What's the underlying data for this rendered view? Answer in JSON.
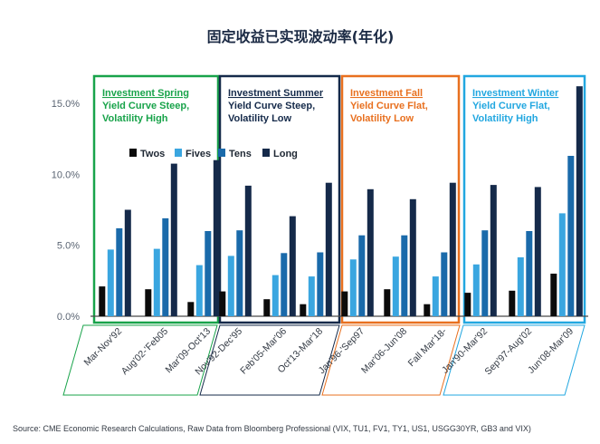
{
  "chart_data": {
    "type": "bar",
    "title": "固定收益已实现波动率(年化)",
    "categories": [
      "Mar-Nov'92",
      "Aug'02-'Feb05",
      "Mar'09-Oct'13",
      "Nov'92-Dec'95",
      "Feb'05-Mar'06",
      "Oct'13-Mar'18",
      "Jan'96-'Sep97",
      "Mar'06-Jun'08",
      "Fall Mar'18-",
      "Jan'90-Mar'92",
      "Sep'97-Aug'02",
      "Jun'08-Mar'09"
    ],
    "series": [
      {
        "name": "Twos",
        "color": "#0b0b0b",
        "values": [
          2.1,
          1.9,
          1.0,
          1.75,
          1.2,
          0.85,
          1.75,
          1.9,
          0.85,
          1.65,
          1.8,
          3.0
        ]
      },
      {
        "name": "Fives",
        "color": "#3aa6e0",
        "values": [
          4.7,
          4.75,
          3.6,
          4.25,
          2.9,
          2.8,
          4.0,
          4.2,
          2.8,
          3.65,
          4.15,
          7.25
        ]
      },
      {
        "name": "Tens",
        "color": "#1a6aaa",
        "values": [
          6.2,
          6.9,
          6.0,
          6.05,
          4.45,
          4.5,
          5.7,
          5.7,
          4.5,
          6.05,
          6.0,
          11.3
        ]
      },
      {
        "name": "Long",
        "color": "#152a4a",
        "values": [
          7.5,
          10.75,
          11.0,
          9.2,
          7.05,
          9.4,
          8.95,
          8.25,
          9.4,
          9.25,
          9.1,
          16.2
        ]
      }
    ],
    "ylim": [
      0,
      16
    ],
    "yticks": [
      "0.0%",
      "5.0%",
      "10.0%",
      "15.0%"
    ],
    "ytick_values": [
      0,
      5,
      10,
      15
    ],
    "grid": false,
    "legend": "top"
  },
  "panels": [
    {
      "title": "Investment Spring",
      "line1": "Yield Curve Steep,",
      "line2": "Volatility High",
      "color": "#18a34a"
    },
    {
      "title": "Investment Summer",
      "line1": "Yield Curve Steep,",
      "line2": "Volatility Low",
      "color": "#152a4a"
    },
    {
      "title": "Investment Fall",
      "line1": "Yield Curve Flat,",
      "line2": "Volatility Low",
      "color": "#e8701f"
    },
    {
      "title": "Investment Winter",
      "line1": "Yield Curve Flat,",
      "line2": "Volatility High",
      "color": "#22a7e0"
    }
  ],
  "source": "Source: CME Economic Research Calculations, Raw Data from Bloomberg Professional (VIX, TU1, FV1, TY1, US1, USGG30YR, GB3 and VIX)"
}
